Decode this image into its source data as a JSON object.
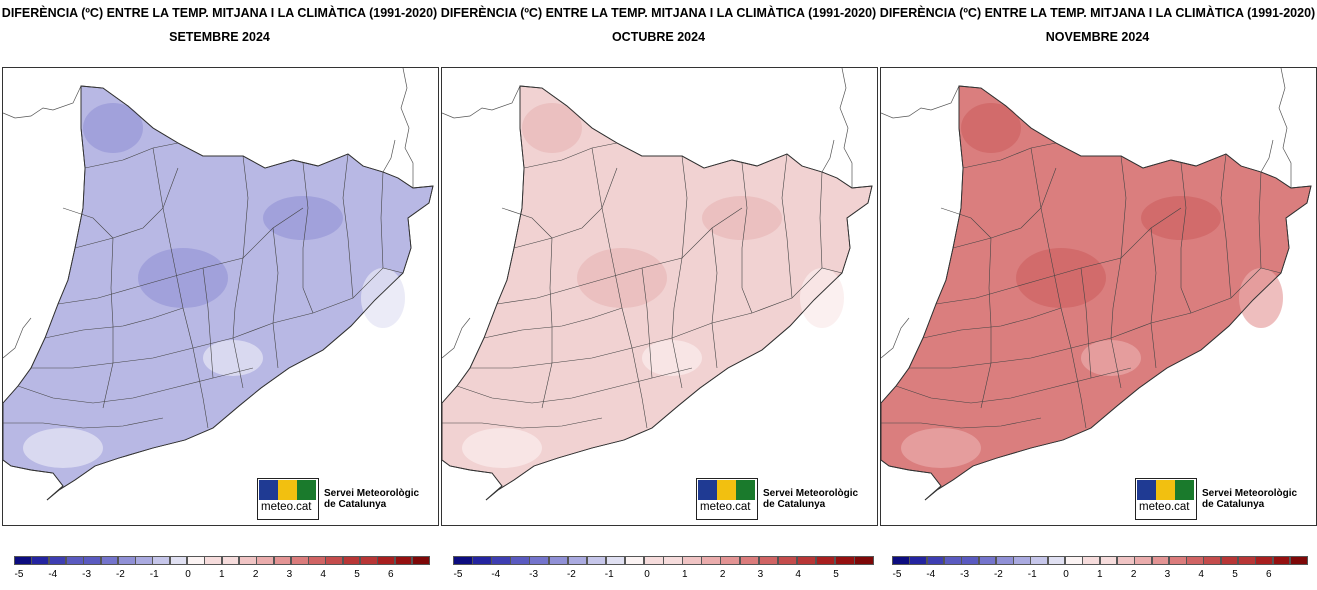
{
  "colors": {
    "scale": [
      "#0c0c7f",
      "#2424a0",
      "#3e3eb2",
      "#5a5ac0",
      "#7474cc",
      "#9090d6",
      "#aaaae0",
      "#c6c6ea",
      "#e0e0f2",
      "#fbf3f3",
      "#f6dcdc",
      "#f0c4c4",
      "#eaacac",
      "#e39494",
      "#db7c7c",
      "#d06464",
      "#c44c4c",
      "#b83636",
      "#a81f1f",
      "#951010",
      "#7e0808"
    ],
    "border": "#333333",
    "meteo_blue": "#1f3a93",
    "meteo_yellow": "#f2c010",
    "meteo_green": "#1a7a2c"
  },
  "panels": [
    {
      "title": "DIFERÈNCIA (ºC) ENTRE LA TEMP. MITJANA I LA CLIMÀTICA (1991-2020)",
      "month": "SETEMBRE 2024",
      "fill": "#b8b8e4",
      "fill_dark": "#9a9ad8",
      "fill_light": "#e4e4f4",
      "legend_ticks": [
        "-5",
        "-4",
        "-3",
        "-2",
        "-1",
        "0",
        "1",
        "2",
        "3",
        "4",
        "5",
        "6"
      ]
    },
    {
      "title": "DIFERÈNCIA (ºC) ENTRE LA TEMP. MITJANA I LA CLIMÀTICA (1991-2020)",
      "month": "OCTUBRE 2024",
      "fill": "#f1d2d2",
      "fill_dark": "#e8b9b9",
      "fill_light": "#f9ebeb",
      "legend_ticks": [
        "-5",
        "-4",
        "-3",
        "-2",
        "-1",
        "0",
        "1",
        "2",
        "3",
        "4",
        "5"
      ]
    },
    {
      "title": "DIFERÈNCIA (ºC) ENTRE LA TEMP. MITJANA I LA CLIMÀTICA (1991-2020)",
      "month": "NOVEMBRE 2024",
      "fill": "#da7e7e",
      "fill_dark": "#cf6666",
      "fill_light": "#e8a8a8",
      "legend_ticks": [
        "-5",
        "-4",
        "-3",
        "-2",
        "-1",
        "0",
        "1",
        "2",
        "3",
        "4",
        "5",
        "6"
      ]
    }
  ],
  "logo": {
    "brand": "meteo.cat",
    "org_line1": "Servei Meteorològic",
    "org_line2": "de Catalunya"
  }
}
